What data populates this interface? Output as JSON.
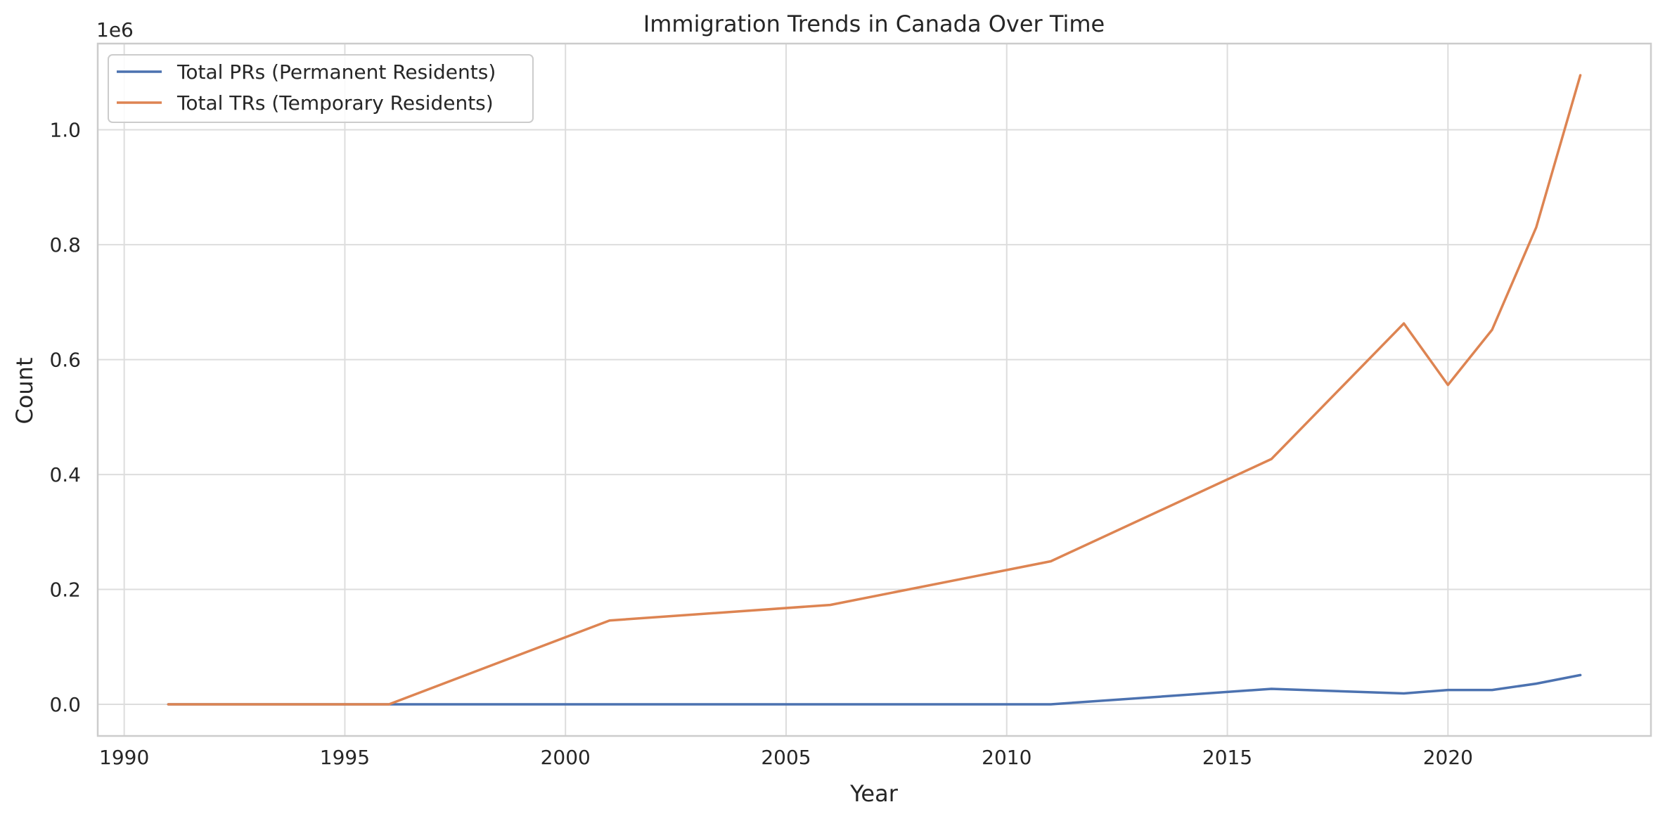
{
  "chart_data": {
    "type": "line",
    "title": "Immigration Trends in Canada Over Time",
    "xlabel": "Year",
    "ylabel": "Count",
    "y_offset_label": "1e6",
    "xlim": [
      1989.4,
      2024.6
    ],
    "ylim": [
      -55000,
      1150000
    ],
    "x_ticks": [
      1990,
      1995,
      2000,
      2005,
      2010,
      2015,
      2020
    ],
    "x_tick_labels": [
      "1990",
      "1995",
      "2000",
      "2005",
      "2010",
      "2015",
      "2020"
    ],
    "y_ticks": [
      0,
      200000,
      400000,
      600000,
      800000,
      1000000
    ],
    "y_tick_labels": [
      "0.0",
      "0.2",
      "0.4",
      "0.6",
      "0.8",
      "1.0"
    ],
    "grid": true,
    "legend_position": "top-left",
    "series": [
      {
        "name": "Total PRs (Permanent Residents)",
        "color": "#4c72b0",
        "x": [
          1991,
          1996,
          2001,
          2006,
          2011,
          2016,
          2019,
          2020,
          2021,
          2022,
          2023
        ],
        "values": [
          0,
          0,
          0,
          0,
          0,
          27000,
          19000,
          25000,
          25000,
          36000,
          51000
        ]
      },
      {
        "name": "Total TRs (Temporary Residents)",
        "color": "#dd8452",
        "x": [
          1991,
          1996,
          2001,
          2006,
          2011,
          2016,
          2019,
          2020,
          2021,
          2022,
          2023
        ],
        "values": [
          0,
          0,
          146000,
          173000,
          249000,
          427000,
          663000,
          556000,
          652000,
          830000,
          1095000
        ]
      }
    ]
  }
}
